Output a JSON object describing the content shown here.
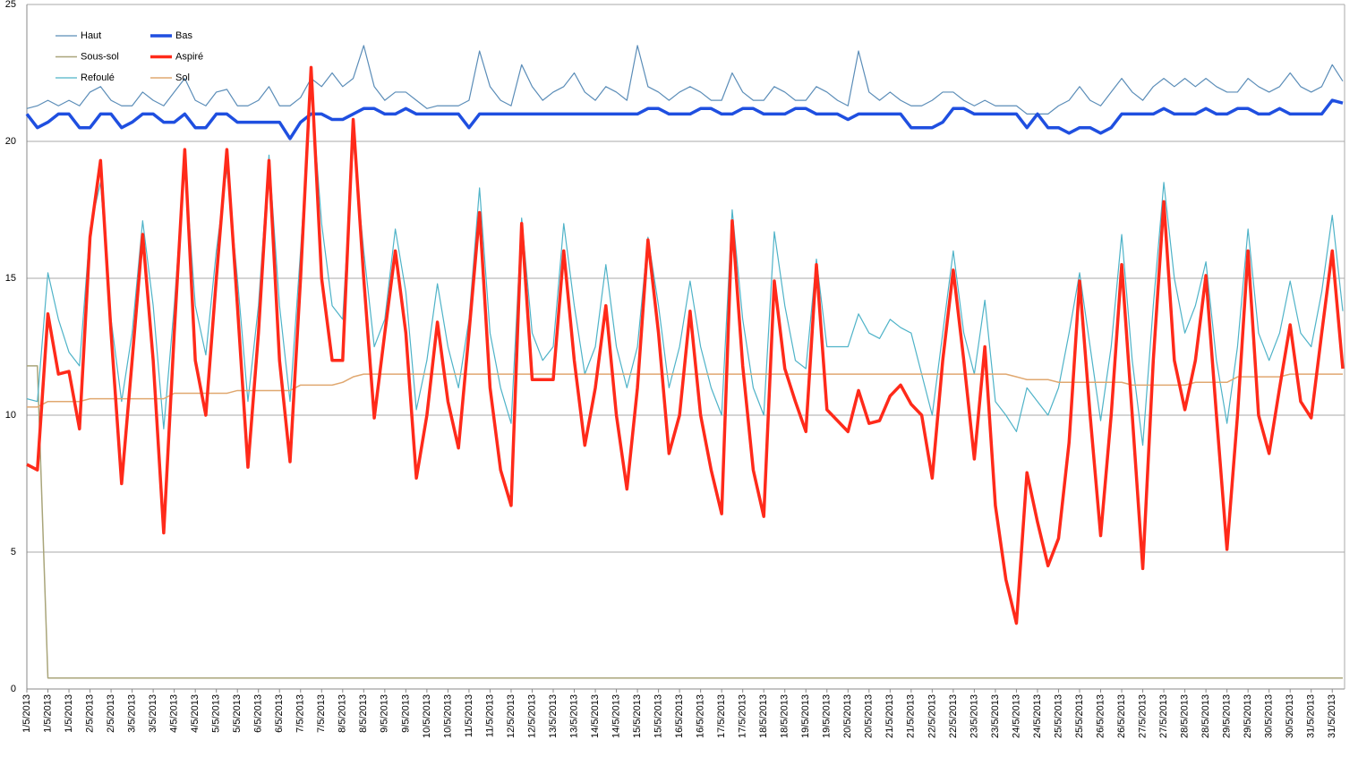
{
  "chart_data": {
    "type": "line",
    "categories": [
      "1/5/2013",
      null,
      "1/5/2013",
      null,
      "1/5/2013",
      null,
      "2/5/2013",
      null,
      "2/5/2013",
      null,
      "3/5/2013",
      null,
      "3/5/2013",
      null,
      "4/5/2013",
      null,
      "4/5/2013",
      null,
      "5/5/2013",
      null,
      "5/5/2013",
      null,
      "6/5/2013",
      null,
      "6/5/2013",
      null,
      "7/5/2013",
      null,
      "7/5/2013",
      null,
      "8/5/2013",
      null,
      "8/5/2013",
      null,
      "9/5/2013",
      null,
      "9/5/2013",
      null,
      "10/5/2013",
      null,
      "10/5/2013",
      null,
      "11/5/2013",
      null,
      "11/5/2013",
      null,
      "12/5/2013",
      null,
      "12/5/2013",
      null,
      "13/5/2013",
      null,
      "13/5/2013",
      null,
      "14/5/2013",
      null,
      "14/5/2013",
      null,
      "15/5/2013",
      null,
      "15/5/2013",
      null,
      "16/5/2013",
      null,
      "16/5/2013",
      null,
      "17/5/2013",
      null,
      "17/5/2013",
      null,
      "18/5/2013",
      null,
      "18/5/2013",
      null,
      "19/5/2013",
      null,
      "19/5/2013",
      null,
      "20/5/2013",
      null,
      "20/5/2013",
      null,
      "21/5/2013",
      null,
      "21/5/2013",
      null,
      "22/5/2013",
      null,
      "22/5/2013",
      null,
      "23/5/2013",
      null,
      "23/5/2013",
      null,
      "24/5/2013",
      null,
      "24/5/2013",
      null,
      "25/5/2013",
      null,
      "25/5/2013",
      null,
      "26/5/2013",
      null,
      "26/5/2013",
      null,
      "27/5/2013",
      null,
      "27/5/2013",
      null,
      "28/5/2013",
      null,
      "28/5/2013",
      null,
      "29/5/2013",
      null,
      "29/5/2013",
      null,
      "30/5/2013",
      null,
      "30/5/2013",
      null,
      "31/5/2013",
      null,
      "31/5/2013",
      null
    ],
    "ylim": [
      0,
      25
    ],
    "yticks": [
      0,
      5,
      10,
      15,
      20,
      25
    ],
    "grid": true,
    "legend": "upper left",
    "series": [
      {
        "name": "Haut",
        "color": "#5b8db8",
        "linewidth": 1.2,
        "values": [
          21.2,
          21.3,
          21.5,
          21.3,
          21.5,
          21.3,
          21.8,
          22,
          21.5,
          21.3,
          21.3,
          21.8,
          21.5,
          21.3,
          21.8,
          22.3,
          21.5,
          21.3,
          21.8,
          21.9,
          21.3,
          21.3,
          21.5,
          22,
          21.3,
          21.3,
          21.6,
          22.3,
          22,
          22.5,
          22,
          22.3,
          23.5,
          22,
          21.5,
          21.8,
          21.8,
          21.5,
          21.2,
          21.3,
          21.3,
          21.3,
          21.5,
          23.3,
          22,
          21.5,
          21.3,
          22.8,
          22,
          21.5,
          21.8,
          22,
          22.5,
          21.8,
          21.5,
          22,
          21.8,
          21.5,
          23.5,
          22,
          21.8,
          21.5,
          21.8,
          22,
          21.8,
          21.5,
          21.5,
          22.5,
          21.8,
          21.5,
          21.5,
          22,
          21.8,
          21.5,
          21.5,
          22,
          21.8,
          21.5,
          21.3,
          23.3,
          21.8,
          21.5,
          21.8,
          21.5,
          21.3,
          21.3,
          21.5,
          21.8,
          21.8,
          21.5,
          21.3,
          21.5,
          21.3,
          21.3,
          21.3,
          21,
          21,
          21,
          21.3,
          21.5,
          22,
          21.5,
          21.3,
          21.8,
          22.3,
          21.8,
          21.5,
          22,
          22.3,
          22,
          22.3,
          22,
          22.3,
          22,
          21.8,
          21.8,
          22.3,
          22,
          21.8,
          22,
          22.5,
          22,
          21.8,
          22,
          22.8,
          22.2
        ]
      },
      {
        "name": "Bas",
        "color": "#1f4fe0",
        "linewidth": 3.5,
        "values": [
          21,
          20.5,
          20.7,
          21,
          21,
          20.5,
          20.5,
          21,
          21,
          20.5,
          20.7,
          21,
          21,
          20.7,
          20.7,
          21,
          20.5,
          20.5,
          21,
          21,
          20.7,
          20.7,
          20.7,
          20.7,
          20.7,
          20.1,
          20.7,
          21,
          21,
          20.8,
          20.8,
          21,
          21.2,
          21.2,
          21,
          21,
          21.2,
          21,
          21,
          21,
          21,
          21,
          20.5,
          21,
          21,
          21,
          21,
          21,
          21,
          21,
          21,
          21,
          21,
          21,
          21,
          21,
          21,
          21,
          21,
          21.2,
          21.2,
          21,
          21,
          21,
          21.2,
          21.2,
          21,
          21,
          21.2,
          21.2,
          21,
          21,
          21,
          21.2,
          21.2,
          21,
          21,
          21,
          20.8,
          21,
          21,
          21,
          21,
          21,
          20.5,
          20.5,
          20.5,
          20.7,
          21.2,
          21.2,
          21,
          21,
          21,
          21,
          21,
          20.5,
          21,
          20.5,
          20.5,
          20.3,
          20.5,
          20.5,
          20.3,
          20.5,
          21,
          21,
          21,
          21,
          21.2,
          21,
          21,
          21,
          21.2,
          21,
          21,
          21.2,
          21.2,
          21,
          21,
          21.2,
          21,
          21,
          21,
          21,
          21.5,
          21.4
        ]
      },
      {
        "name": "Sous-sol",
        "color": "#a9a57a",
        "linewidth": 1.5,
        "values": [
          11.8,
          11.8,
          0.4,
          0.4,
          0.4,
          0.4,
          0.4,
          0.4,
          0.4,
          0.4,
          0.4,
          0.4,
          0.4,
          0.4,
          0.4,
          0.4,
          0.4,
          0.4,
          0.4,
          0.4,
          0.4,
          0.4,
          0.4,
          0.4,
          0.4,
          0.4,
          0.4,
          0.4,
          0.4,
          0.4,
          0.4,
          0.4,
          0.4,
          0.4,
          0.4,
          0.4,
          0.4,
          0.4,
          0.4,
          0.4,
          0.4,
          0.4,
          0.4,
          0.4,
          0.4,
          0.4,
          0.4,
          0.4,
          0.4,
          0.4,
          0.4,
          0.4,
          0.4,
          0.4,
          0.4,
          0.4,
          0.4,
          0.4,
          0.4,
          0.4,
          0.4,
          0.4,
          0.4,
          0.4,
          0.4,
          0.4,
          0.4,
          0.4,
          0.4,
          0.4,
          0.4,
          0.4,
          0.4,
          0.4,
          0.4,
          0.4,
          0.4,
          0.4,
          0.4,
          0.4,
          0.4,
          0.4,
          0.4,
          0.4,
          0.4,
          0.4,
          0.4,
          0.4,
          0.4,
          0.4,
          0.4,
          0.4,
          0.4,
          0.4,
          0.4,
          0.4,
          0.4,
          0.4,
          0.4,
          0.4,
          0.4,
          0.4,
          0.4,
          0.4,
          0.4,
          0.4,
          0.4,
          0.4,
          0.4,
          0.4,
          0.4,
          0.4,
          0.4,
          0.4,
          0.4,
          0.4,
          0.4,
          0.4,
          0.4,
          0.4,
          0.4,
          0.4,
          0.4,
          0.4,
          0.4,
          0.4
        ]
      },
      {
        "name": "Aspiré",
        "color": "#ff2a1a",
        "linewidth": 3.5,
        "values": [
          8.2,
          8,
          13.7,
          11.5,
          11.6,
          9.5,
          16.5,
          19.3,
          13,
          7.5,
          12,
          16.6,
          12,
          5.7,
          13,
          19.7,
          12,
          10,
          15,
          19.7,
          14,
          8.1,
          13,
          19.3,
          12,
          8.3,
          15,
          22.7,
          15,
          12,
          12,
          20.8,
          15,
          9.9,
          13,
          16,
          13,
          7.7,
          10,
          13.4,
          10.5,
          8.8,
          13,
          17.4,
          11,
          8,
          6.7,
          17,
          11.3,
          11.3,
          11.3,
          16,
          12,
          8.9,
          11,
          14,
          10,
          7.3,
          11,
          16.4,
          13,
          8.6,
          10,
          13.8,
          10,
          8,
          6.4,
          17.1,
          11.8,
          8,
          6.3,
          14.9,
          11.7,
          10.5,
          9.4,
          15.5,
          10.2,
          9.8,
          9.4,
          10.9,
          9.7,
          9.8,
          10.7,
          11.1,
          10.4,
          10,
          7.7,
          12,
          15.3,
          12,
          8.4,
          12.5,
          6.7,
          4,
          2.4,
          7.9,
          6.1,
          4.5,
          5.5,
          9,
          14.9,
          10,
          5.6,
          10,
          15.5,
          10,
          4.4,
          12,
          17.8,
          12,
          10.2,
          12,
          15.1,
          10,
          5.1,
          10,
          16,
          10,
          8.6,
          11,
          13.3,
          10.5,
          9.9,
          13,
          16,
          11.7
        ]
      },
      {
        "name": "Refoulé",
        "color": "#4fb3c8",
        "linewidth": 1.2,
        "values": [
          10.6,
          10.5,
          15.2,
          13.5,
          12.3,
          11.8,
          16.8,
          18.5,
          13.5,
          10.5,
          13,
          17.1,
          14,
          9.5,
          14,
          19.3,
          14,
          12.2,
          16,
          19,
          15,
          10.5,
          14,
          19.5,
          14,
          10.5,
          16,
          22,
          17,
          14,
          13.5,
          20,
          16,
          12.5,
          13.5,
          16.8,
          14.5,
          10.2,
          12,
          14.8,
          12.5,
          11,
          13.5,
          18.3,
          13,
          11,
          9.7,
          17.2,
          13,
          12,
          12.5,
          17,
          14,
          11.5,
          12.5,
          15.5,
          12.5,
          11,
          12.5,
          16.5,
          14,
          11,
          12.5,
          14.9,
          12.5,
          11,
          10,
          17.5,
          13.5,
          11,
          10,
          16.7,
          14,
          12,
          11.7,
          15.7,
          12.5,
          12.5,
          12.5,
          13.7,
          13,
          12.8,
          13.5,
          13.2,
          13,
          11.5,
          10,
          13,
          16,
          13,
          11.5,
          14.2,
          10.5,
          10,
          9.4,
          11,
          10.5,
          10,
          11,
          13,
          15.2,
          12.5,
          9.8,
          12.5,
          16.6,
          12,
          8.9,
          14,
          18.5,
          15,
          13,
          14,
          15.6,
          12,
          9.7,
          12.5,
          16.8,
          13,
          12,
          13,
          14.9,
          13,
          12.5,
          14.5,
          17.3,
          13.8
        ]
      },
      {
        "name": "Sol",
        "color": "#e0a870",
        "linewidth": 1.5,
        "values": [
          10.3,
          10.3,
          10.5,
          10.5,
          10.5,
          10.5,
          10.6,
          10.6,
          10.6,
          10.6,
          10.6,
          10.6,
          10.6,
          10.6,
          10.8,
          10.8,
          10.8,
          10.8,
          10.8,
          10.8,
          10.9,
          10.9,
          10.9,
          10.9,
          10.9,
          10.9,
          11.1,
          11.1,
          11.1,
          11.1,
          11.2,
          11.4,
          11.5,
          11.5,
          11.5,
          11.5,
          11.5,
          11.5,
          11.5,
          11.5,
          11.5,
          11.5,
          11.5,
          11.5,
          11.5,
          11.5,
          11.5,
          11.5,
          11.5,
          11.5,
          11.5,
          11.5,
          11.5,
          11.5,
          11.5,
          11.5,
          11.5,
          11.5,
          11.5,
          11.5,
          11.5,
          11.5,
          11.5,
          11.5,
          11.5,
          11.5,
          11.5,
          11.5,
          11.5,
          11.5,
          11.5,
          11.5,
          11.5,
          11.5,
          11.5,
          11.5,
          11.5,
          11.5,
          11.5,
          11.5,
          11.5,
          11.5,
          11.5,
          11.5,
          11.5,
          11.5,
          11.5,
          11.5,
          11.5,
          11.5,
          11.5,
          11.5,
          11.5,
          11.5,
          11.4,
          11.3,
          11.3,
          11.3,
          11.2,
          11.2,
          11.2,
          11.2,
          11.2,
          11.2,
          11.2,
          11.1,
          11.1,
          11.1,
          11.1,
          11.1,
          11.1,
          11.2,
          11.2,
          11.2,
          11.2,
          11.4,
          11.4,
          11.4,
          11.4,
          11.4,
          11.5,
          11.5,
          11.5,
          11.5,
          11.5,
          11.5
        ]
      }
    ]
  }
}
